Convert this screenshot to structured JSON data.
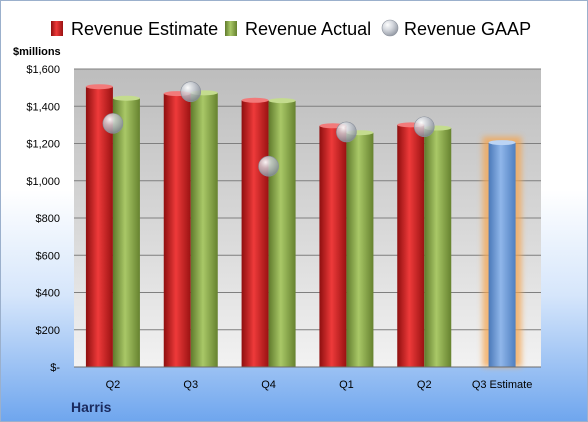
{
  "chart_data": {
    "type": "bar",
    "categories": [
      "Q2",
      "Q3",
      "Q4",
      "Q1",
      "Q2",
      "Q3 Estimate"
    ],
    "series": [
      {
        "name": "Revenue Estimate",
        "values": [
          1505,
          1468,
          1432,
          1295,
          1300,
          1205
        ],
        "color": "#d42020"
      },
      {
        "name": "Revenue Actual",
        "values": [
          1443,
          1472,
          1430,
          1258,
          1283,
          null
        ],
        "color": "#8fb04a"
      },
      {
        "name": "Revenue GAAP",
        "values": [
          1308,
          1478,
          1078,
          1262,
          1290,
          null
        ],
        "color": "#b8bec8",
        "marker": "sphere"
      }
    ],
    "highlight_category": "Q3 Estimate",
    "highlight_color": "#6a9ad8",
    "y_ticks": [
      "$-",
      "$200",
      "$400",
      "$600",
      "$800",
      "$1,000",
      "$1,200",
      "$1,400",
      "$1,600"
    ],
    "ylim": [
      0,
      1600
    ],
    "ylabel": "$millions",
    "footer": "Harris",
    "grid": true,
    "legend_position": "top"
  }
}
